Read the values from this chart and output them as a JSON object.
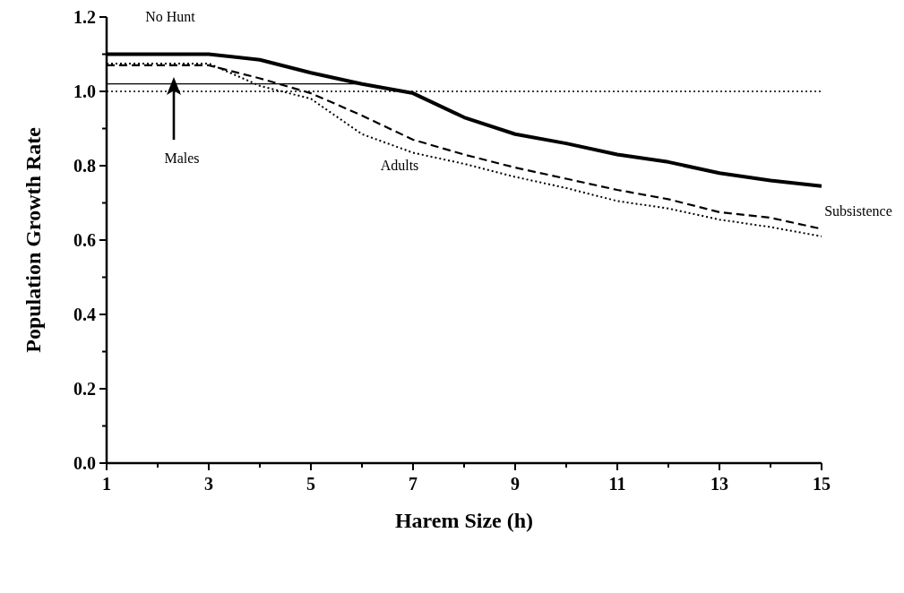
{
  "chart_data": {
    "type": "line",
    "xlabel": "Harem Size (h)",
    "ylabel": "Population Growth Rate",
    "xlim": [
      1,
      15
    ],
    "ylim": [
      0,
      1.2
    ],
    "xticks": [
      1,
      {
        "value": 2,
        "label": null
      },
      3,
      {
        "value": 4,
        "label": null
      },
      5,
      {
        "value": 6,
        "label": null
      },
      7,
      {
        "value": 8,
        "label": null
      },
      9,
      {
        "value": 10,
        "label": null
      },
      11,
      {
        "value": 12,
        "label": null
      },
      13,
      {
        "value": 14,
        "label": null
      },
      15
    ],
    "yticks": [
      {
        "value": 0,
        "label": "0.0"
      },
      {
        "value": 0.1,
        "label": null
      },
      0.2,
      {
        "value": 0.3,
        "label": null
      },
      0.4,
      {
        "value": 0.5,
        "label": null
      },
      0.6,
      {
        "value": 0.7,
        "label": null
      },
      0.8,
      {
        "value": 0.9,
        "label": null
      },
      {
        "value": 1,
        "label": "1.0"
      },
      {
        "value": 1.1,
        "label": null
      },
      1.2
    ],
    "grid": false,
    "series": [
      {
        "color": "#000000",
        "line_style": "solid",
        "x": [
          1,
          2,
          3,
          4,
          5,
          6,
          7,
          8,
          9,
          10,
          11,
          12,
          13,
          14,
          15
        ],
        "values": [
          1.1,
          1.1,
          1.1,
          1.085,
          1.05,
          1.02,
          0.995,
          0.93,
          0.885,
          0.86,
          0.83,
          0.81,
          0.78,
          0.76,
          0.745
        ]
      },
      {
        "color": "#000000",
        "line_style": "dashed",
        "x": [
          1,
          2,
          3,
          4,
          5,
          6,
          7,
          8,
          9,
          10,
          11,
          12,
          13,
          14,
          15
        ],
        "values": [
          1.07,
          1.07,
          1.07,
          1.035,
          0.995,
          0.935,
          0.87,
          0.83,
          0.795,
          0.765,
          0.735,
          0.71,
          0.675,
          0.66,
          0.63
        ]
      },
      {
        "color": "#000000",
        "line_style": "dotted",
        "x": [
          1,
          2,
          3,
          4,
          5,
          6,
          7,
          8,
          9,
          10,
          11,
          12,
          13,
          14,
          15
        ],
        "values": [
          1.075,
          1.075,
          1.075,
          1.015,
          0.98,
          0.885,
          0.835,
          0.805,
          0.77,
          0.74,
          0.705,
          0.685,
          0.655,
          0.635,
          0.61
        ]
      },
      {
        "color": "#000000",
        "line_style": "solid",
        "x": [
          1,
          6
        ],
        "values": [
          1.02,
          1.02
        ]
      }
    ],
    "ref_lines": [
      {
        "axis": "y",
        "value": 1,
        "line_style": "dotted",
        "color": "#000000"
      }
    ],
    "annotations": [
      "No Hunt",
      "Males",
      "Adults",
      "Subsistence"
    ]
  }
}
